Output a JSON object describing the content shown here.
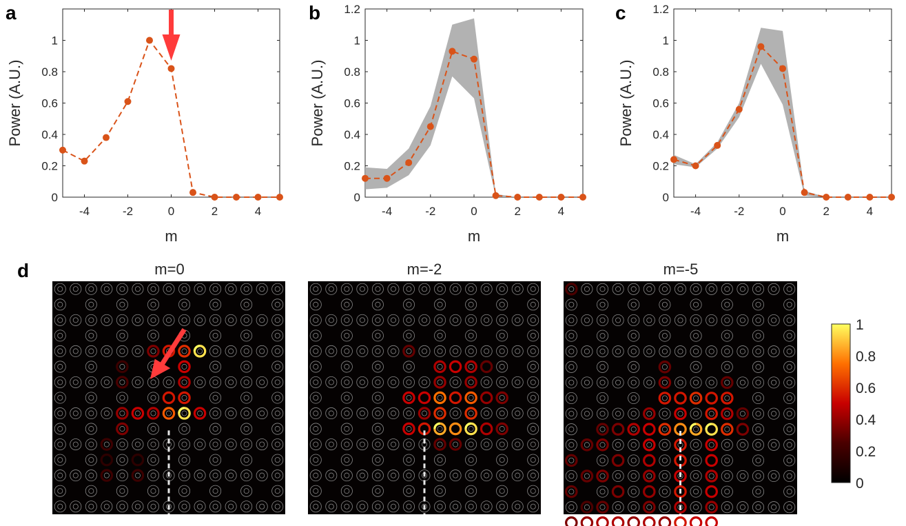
{
  "chart_data": [
    {
      "id": "a",
      "panel_label": "a",
      "type": "line",
      "x": [
        -5,
        -4,
        -3,
        -2,
        -1,
        0,
        1,
        2,
        3,
        4,
        5
      ],
      "series": [
        {
          "name": "Power",
          "values": [
            0.3,
            0.23,
            0.38,
            0.61,
            1.0,
            0.82,
            0.03,
            0.0,
            0.0,
            0.0,
            0.0
          ]
        }
      ],
      "xlabel": "m",
      "ylabel": "Power (A.U.)",
      "xlim": [
        -5,
        5
      ],
      "ylim": [
        0,
        1.2
      ],
      "xticks": [
        "-4",
        "-2",
        "0",
        "2",
        "4"
      ],
      "yticks": [
        "0",
        "0.2",
        "0.4",
        "0.6",
        "0.8",
        "1"
      ],
      "annotation": "arrow marking m=0"
    },
    {
      "id": "b",
      "panel_label": "b",
      "type": "line",
      "x": [
        -5,
        -4,
        -3,
        -2,
        -1,
        0,
        1,
        2,
        3,
        4,
        5
      ],
      "series": [
        {
          "name": "Power",
          "values": [
            0.12,
            0.12,
            0.22,
            0.45,
            0.93,
            0.88,
            0.01,
            0.0,
            0.0,
            0.0,
            0.0
          ]
        }
      ],
      "band_low": [
        0.05,
        0.06,
        0.14,
        0.33,
        0.77,
        0.63,
        0.0,
        0.0,
        0.0,
        0.0,
        0.0
      ],
      "band_high": [
        0.19,
        0.18,
        0.31,
        0.58,
        1.1,
        1.14,
        0.02,
        0.0,
        0.0,
        0.0,
        0.0
      ],
      "xlabel": "m",
      "ylabel": "Power (A.U.)",
      "xlim": [
        -5,
        5
      ],
      "ylim": [
        0,
        1.2
      ],
      "xticks": [
        "-4",
        "-2",
        "0",
        "2",
        "4"
      ],
      "yticks": [
        "0",
        "0.2",
        "0.4",
        "0.6",
        "0.8",
        "1",
        "1.2"
      ]
    },
    {
      "id": "c",
      "panel_label": "c",
      "type": "line",
      "x": [
        -5,
        -4,
        -3,
        -2,
        -1,
        0,
        1,
        2,
        3,
        4,
        5
      ],
      "series": [
        {
          "name": "Power",
          "values": [
            0.24,
            0.2,
            0.33,
            0.56,
            0.96,
            0.82,
            0.03,
            0.0,
            0.0,
            0.0,
            0.0
          ]
        }
      ],
      "band_low": [
        0.21,
        0.19,
        0.31,
        0.51,
        0.85,
        0.59,
        0.01,
        0.0,
        0.0,
        0.0,
        0.0
      ],
      "band_high": [
        0.27,
        0.21,
        0.35,
        0.6,
        1.08,
        1.06,
        0.04,
        0.0,
        0.0,
        0.0,
        0.0
      ],
      "xlabel": "m",
      "ylabel": "Power (A.U.)",
      "xlim": [
        -5,
        5
      ],
      "ylim": [
        0,
        1.2
      ],
      "xticks": [
        "-4",
        "-2",
        "0",
        "2",
        "4"
      ],
      "yticks": [
        "0",
        "0.2",
        "0.4",
        "0.6",
        "0.8",
        "1",
        "1.2"
      ]
    },
    {
      "id": "d",
      "panel_label": "d",
      "type": "heatmap",
      "maps": [
        {
          "title": "m=0",
          "rings": [
            [
              6,
              4,
              0.35
            ],
            [
              7,
              4,
              0.55
            ],
            [
              8,
              4,
              0.6
            ],
            [
              9,
              4,
              0.95
            ],
            [
              4,
              5,
              0.2
            ],
            [
              4,
              6,
              0.25
            ],
            [
              8,
              5,
              0.5
            ],
            [
              8,
              6,
              0.45
            ],
            [
              7,
              7,
              0.55
            ],
            [
              8,
              7,
              0.55
            ],
            [
              4,
              8,
              0.4
            ],
            [
              5,
              8,
              0.5
            ],
            [
              6,
              8,
              0.45
            ],
            [
              7,
              8,
              0.7
            ],
            [
              8,
              8,
              0.95
            ],
            [
              9,
              8,
              0.5
            ],
            [
              4,
              9,
              0.35
            ],
            [
              3,
              10,
              0.2
            ],
            [
              3,
              12,
              0.2
            ],
            [
              5,
              12,
              0.2
            ],
            [
              3,
              11,
              0.15
            ],
            [
              5,
              11,
              0.15
            ]
          ],
          "has_arrow": true
        },
        {
          "title": "m=-2",
          "rings": [
            [
              6,
              4,
              0.3
            ],
            [
              8,
              5,
              0.45
            ],
            [
              9,
              5,
              0.5
            ],
            [
              10,
              5,
              0.45
            ],
            [
              11,
              5,
              0.3
            ],
            [
              8,
              6,
              0.4
            ],
            [
              10,
              6,
              0.4
            ],
            [
              6,
              7,
              0.5
            ],
            [
              7,
              7,
              0.5
            ],
            [
              8,
              7,
              0.75
            ],
            [
              9,
              7,
              0.55
            ],
            [
              10,
              7,
              0.7
            ],
            [
              11,
              7,
              0.4
            ],
            [
              12,
              7,
              0.35
            ],
            [
              7,
              8,
              0.4
            ],
            [
              8,
              8,
              0.6
            ],
            [
              10,
              8,
              0.6
            ],
            [
              6,
              9,
              0.5
            ],
            [
              7,
              9,
              0.55
            ],
            [
              8,
              9,
              0.85
            ],
            [
              9,
              9,
              0.8
            ],
            [
              10,
              9,
              0.95
            ],
            [
              11,
              9,
              0.45
            ],
            [
              12,
              9,
              0.35
            ],
            [
              8,
              10,
              0.3
            ],
            [
              9,
              10,
              0.3
            ]
          ],
          "has_arrow": false
        },
        {
          "title": "m=-5",
          "rings": [
            [
              0,
              0,
              0.25
            ],
            [
              6,
              5,
              0.3
            ],
            [
              6,
              6,
              0.35
            ],
            [
              10,
              6,
              0.3
            ],
            [
              6,
              7,
              0.55
            ],
            [
              7,
              7,
              0.55
            ],
            [
              8,
              7,
              0.6
            ],
            [
              9,
              7,
              0.55
            ],
            [
              10,
              7,
              0.55
            ],
            [
              5,
              8,
              0.4
            ],
            [
              7,
              8,
              0.5
            ],
            [
              9,
              8,
              0.55
            ],
            [
              10,
              8,
              0.45
            ],
            [
              11,
              8,
              0.3
            ],
            [
              2,
              9,
              0.3
            ],
            [
              3,
              9,
              0.35
            ],
            [
              4,
              9,
              0.45
            ],
            [
              5,
              9,
              0.5
            ],
            [
              6,
              9,
              0.6
            ],
            [
              7,
              9,
              0.8
            ],
            [
              8,
              9,
              0.85
            ],
            [
              9,
              9,
              0.95
            ],
            [
              10,
              9,
              0.6
            ],
            [
              11,
              9,
              0.35
            ],
            [
              1,
              10,
              0.3
            ],
            [
              2,
              10,
              0.35
            ],
            [
              5,
              10,
              0.5
            ],
            [
              7,
              10,
              0.55
            ],
            [
              9,
              10,
              0.5
            ],
            [
              0,
              11,
              0.3
            ],
            [
              3,
              11,
              0.35
            ],
            [
              5,
              11,
              0.45
            ],
            [
              7,
              11,
              0.55
            ],
            [
              9,
              11,
              0.5
            ],
            [
              1,
              12,
              0.3
            ],
            [
              2,
              12,
              0.35
            ],
            [
              5,
              12,
              0.4
            ],
            [
              7,
              12,
              0.5
            ],
            [
              9,
              12,
              0.45
            ],
            [
              0,
              13,
              0.3
            ],
            [
              3,
              13,
              0.35
            ],
            [
              5,
              13,
              0.4
            ],
            [
              7,
              13,
              0.55
            ],
            [
              9,
              13,
              0.5
            ],
            [
              1,
              14,
              0.25
            ],
            [
              2,
              14,
              0.3
            ],
            [
              5,
              14,
              0.35
            ],
            [
              7,
              14,
              0.45
            ],
            [
              9,
              14,
              0.4
            ],
            [
              0,
              15,
              0.35
            ],
            [
              1,
              15,
              0.4
            ],
            [
              2,
              15,
              0.45
            ],
            [
              3,
              15,
              0.45
            ],
            [
              4,
              15,
              0.4
            ],
            [
              5,
              15,
              0.45
            ],
            [
              6,
              15,
              0.4
            ],
            [
              7,
              15,
              0.55
            ],
            [
              8,
              15,
              0.5
            ],
            [
              9,
              15,
              0.5
            ]
          ],
          "has_arrow": false
        }
      ],
      "colorbar": {
        "ticks": [
          "1",
          "0.8",
          "0.6",
          "0.4",
          "0.2",
          "0"
        ],
        "range": [
          0,
          1
        ]
      }
    }
  ],
  "colors": {
    "line": "#d95319",
    "band": "#aaaaaa",
    "arrow": "#ff3b3b",
    "axis": "#262626",
    "map_bg": "#050202",
    "ring": "#8a8a8a",
    "dashed": "#e6e6e6"
  }
}
